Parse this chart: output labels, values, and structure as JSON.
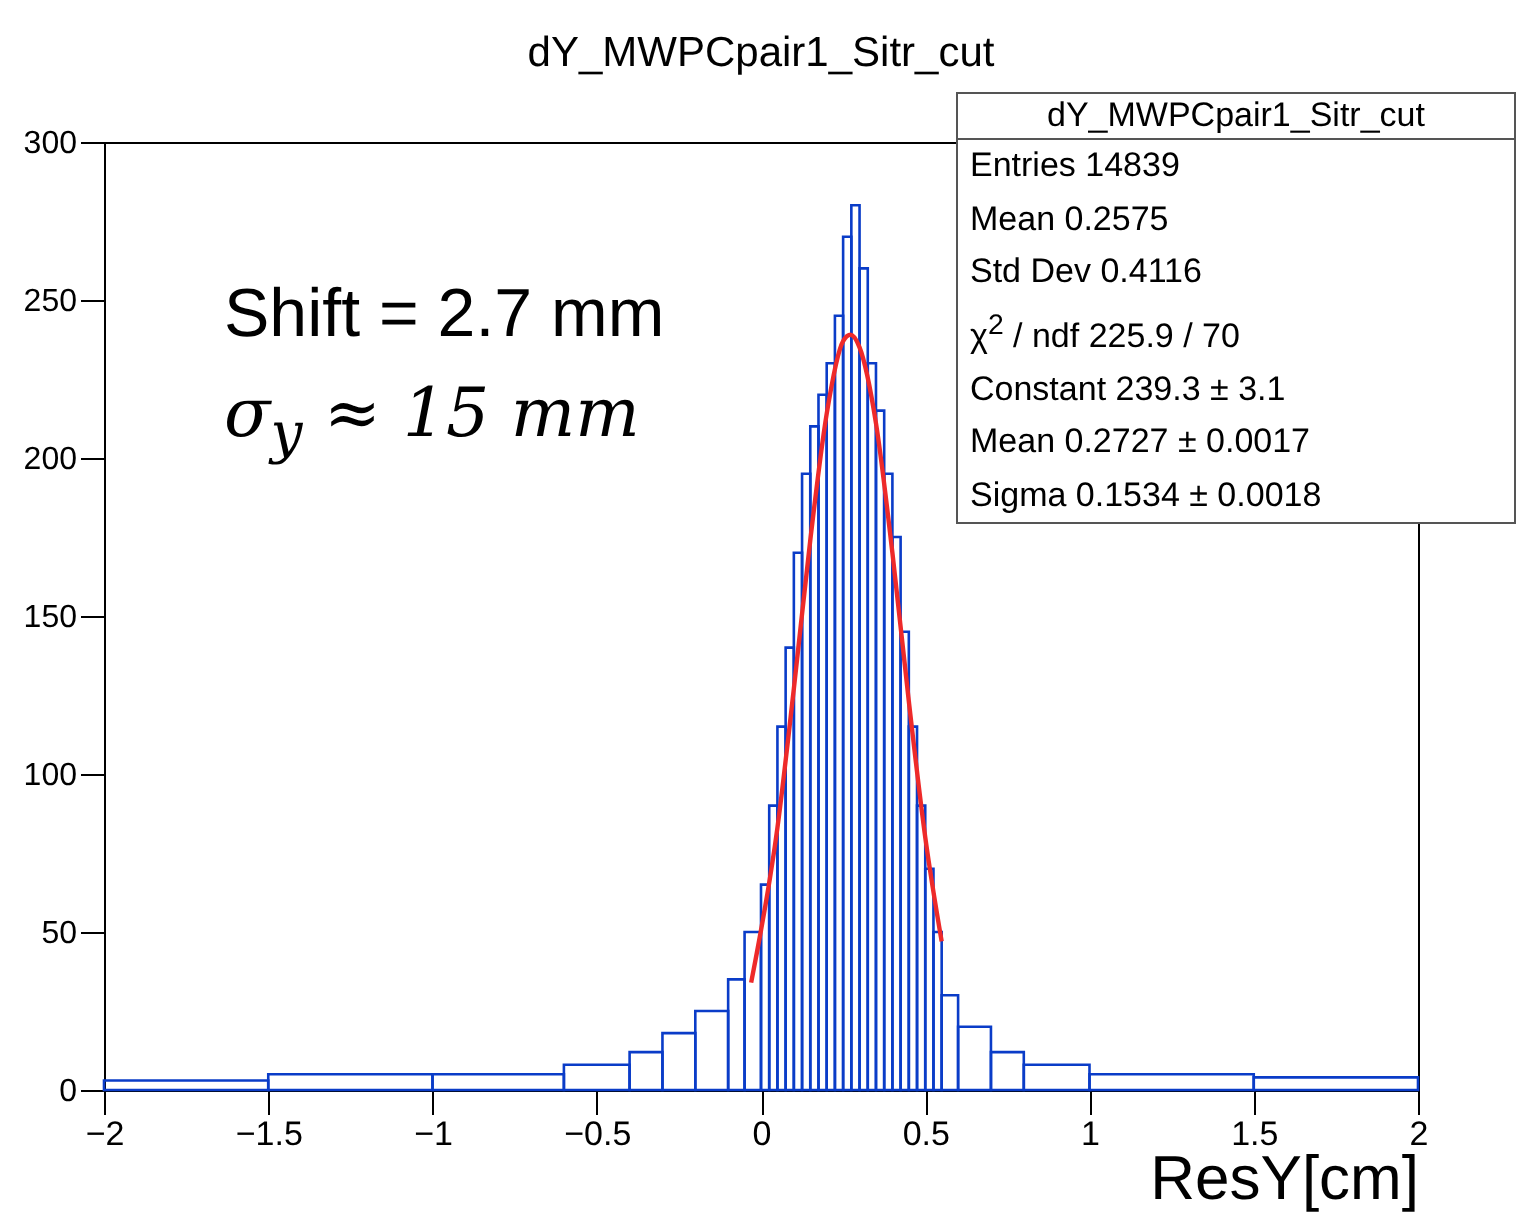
{
  "chart_data": {
    "type": "histogram",
    "title": "dY_MWPCpair1_Sitr_cut",
    "xlabel": "ResY[cm]",
    "bins": [
      -2,
      -1.5,
      -1,
      -0.6,
      -0.4,
      -0.3,
      -0.2,
      -0.1,
      -0.05,
      0,
      0.025,
      0.05,
      0.075,
      0.1,
      0.125,
      0.15,
      0.175,
      0.2,
      0.225,
      0.25,
      0.275,
      0.3,
      0.325,
      0.35,
      0.375,
      0.4,
      0.425,
      0.45,
      0.475,
      0.5,
      0.525,
      0.55,
      0.6,
      0.7,
      0.8,
      1,
      1.5,
      2
    ],
    "values": [
      3,
      5,
      5,
      8,
      12,
      18,
      25,
      35,
      50,
      65,
      90,
      115,
      140,
      170,
      195,
      210,
      220,
      230,
      245,
      270,
      280,
      260,
      230,
      215,
      195,
      175,
      145,
      115,
      90,
      70,
      50,
      30,
      20,
      12,
      8,
      5,
      4
    ],
    "color": "#0a3cc8",
    "series": [
      {
        "type": "line",
        "color": "#ee2a2a",
        "x": [
          -0.03,
          0.05,
          0.1,
          0.15,
          0.2,
          0.25,
          0.2727,
          0.3,
          0.35,
          0.4,
          0.45,
          0.5,
          0.55
        ],
        "values": [
          34,
          83,
          127,
          174,
          214,
          237,
          239,
          235,
          211,
          170,
          123,
          80,
          47
        ]
      }
    ],
    "xlim": [
      -2,
      2
    ],
    "xticks": [
      -2,
      -1.5,
      -1,
      -0.5,
      0,
      0.5,
      1,
      1.5,
      2
    ],
    "ylim": [
      0,
      300
    ],
    "yticks": [
      0,
      50,
      100,
      150,
      200,
      250,
      300
    ],
    "grid": false,
    "annotations": [
      "Shift = 2.7 mm",
      "σ$_{y}$ ≈ 15 mm",
      "dY_MWPCpair1_Sitr_cut",
      "Entries 14839",
      "Mean 0.2575",
      "Std Dev 0.4116",
      "χ$^{2}$ / ndf 225.9 / 70",
      "Constant 239.3 ± 3.1",
      "Mean 0.2727 ± 0.0017",
      "Sigma 0.1534 ± 0.0018"
    ]
  }
}
